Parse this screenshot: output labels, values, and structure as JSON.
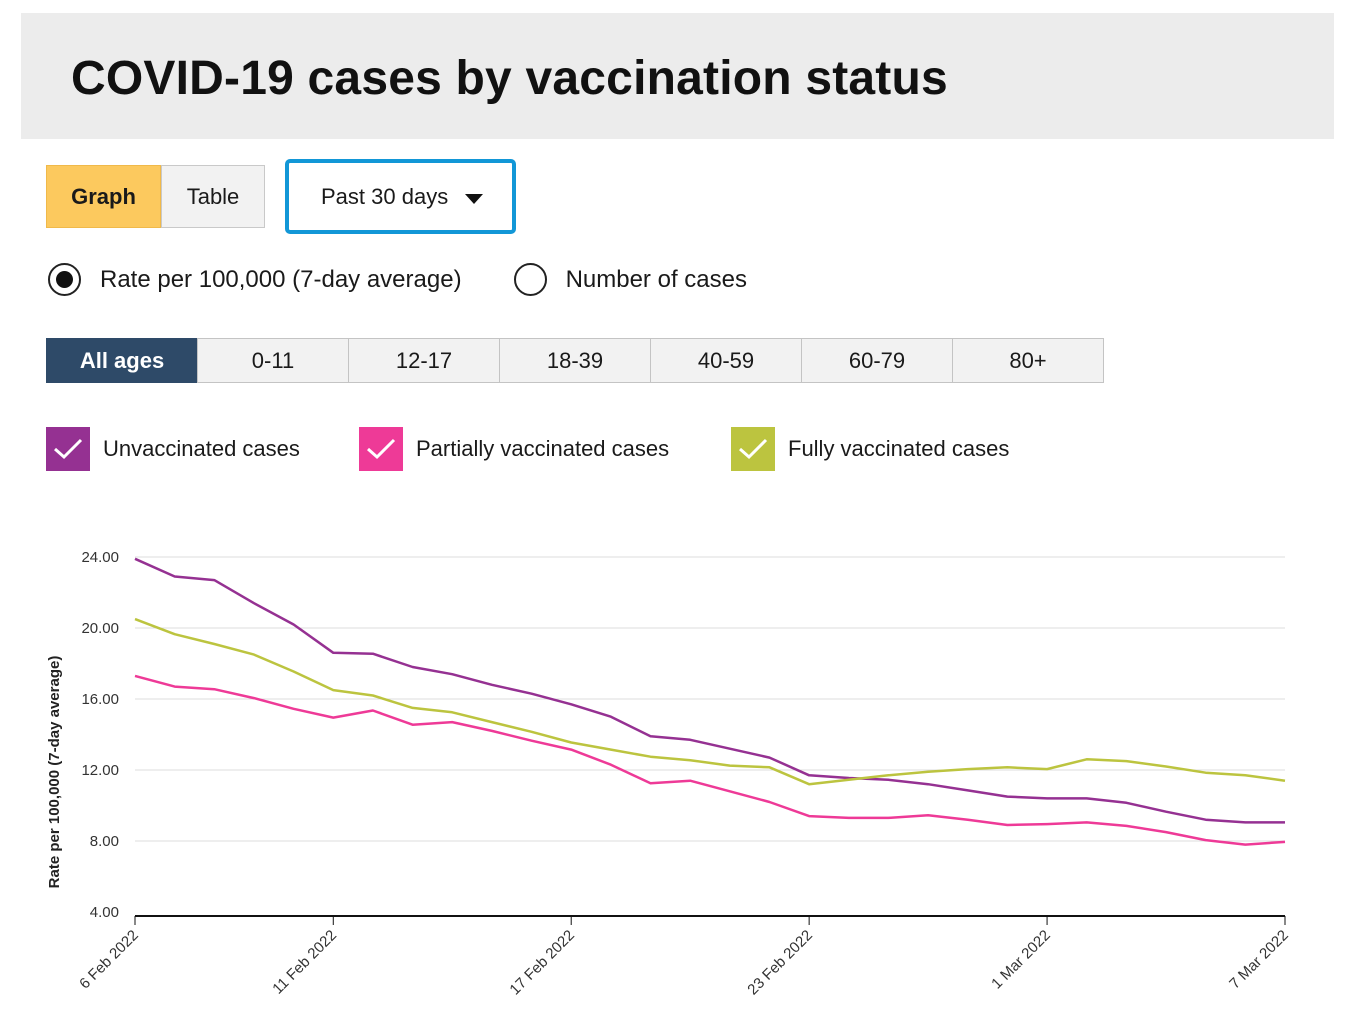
{
  "header": {
    "title": "COVID-19 cases by vaccination status"
  },
  "view_toggle": {
    "graph_label": "Graph",
    "table_label": "Table",
    "selected": "Graph"
  },
  "range_select": {
    "value": "Past 30 days"
  },
  "measure": {
    "options": [
      "Rate per 100,000 (7-day average)",
      "Number of cases"
    ],
    "selected": "Rate per 100,000 (7-day average)"
  },
  "age_groups": {
    "options": [
      "All ages",
      "0-11",
      "12-17",
      "18-39",
      "40-59",
      "60-79",
      "80+"
    ],
    "selected": "All ages"
  },
  "legend": [
    {
      "label": "Unvaccinated cases",
      "color": "#953192",
      "checked": true
    },
    {
      "label": "Partially vaccinated cases",
      "color": "#ee3a97",
      "checked": true
    },
    {
      "label": "Fully vaccinated cases",
      "color": "#bcc43f",
      "checked": true
    }
  ],
  "chart_data": {
    "type": "line",
    "ylabel": "Rate per 100,000 (7-day average)",
    "ylim": [
      4,
      24
    ],
    "yticks": [
      "4.00",
      "8.00",
      "12.00",
      "16.00",
      "20.00",
      "24.00"
    ],
    "xticks": [
      "6 Feb 2022",
      "11 Feb 2022",
      "17 Feb 2022",
      "23 Feb 2022",
      "1 Mar 2022",
      "7 Mar 2022"
    ],
    "grid": true,
    "x": [
      "2022-02-06",
      "2022-02-07",
      "2022-02-08",
      "2022-02-09",
      "2022-02-10",
      "2022-02-11",
      "2022-02-12",
      "2022-02-13",
      "2022-02-14",
      "2022-02-15",
      "2022-02-16",
      "2022-02-17",
      "2022-02-18",
      "2022-02-19",
      "2022-02-20",
      "2022-02-21",
      "2022-02-22",
      "2022-02-23",
      "2022-02-24",
      "2022-02-25",
      "2022-02-26",
      "2022-02-27",
      "2022-02-28",
      "2022-03-01",
      "2022-03-02",
      "2022-03-03",
      "2022-03-04",
      "2022-03-05",
      "2022-03-06",
      "2022-03-07"
    ],
    "series": [
      {
        "name": "Unvaccinated cases",
        "color": "#953192",
        "values": [
          23.9,
          22.9,
          22.7,
          21.4,
          20.2,
          18.6,
          18.55,
          17.8,
          17.4,
          16.8,
          16.3,
          15.7,
          15.0,
          13.9,
          13.7,
          13.2,
          12.7,
          11.7,
          11.55,
          11.45,
          11.2,
          10.85,
          10.5,
          10.4,
          10.4,
          10.15,
          9.65,
          9.2,
          9.05,
          9.05
        ]
      },
      {
        "name": "Partially vaccinated cases",
        "color": "#ee3a97",
        "values": [
          17.3,
          16.7,
          16.55,
          16.05,
          15.45,
          14.95,
          15.35,
          14.55,
          14.7,
          14.2,
          13.65,
          13.15,
          12.3,
          11.25,
          11.4,
          10.8,
          10.2,
          9.4,
          9.3,
          9.3,
          9.45,
          9.2,
          8.9,
          8.95,
          9.05,
          8.85,
          8.5,
          8.05,
          7.8,
          7.95
        ]
      },
      {
        "name": "Fully vaccinated cases",
        "color": "#bcc43f",
        "values": [
          20.5,
          19.65,
          19.1,
          18.5,
          17.55,
          16.5,
          16.2,
          15.5,
          15.25,
          14.7,
          14.15,
          13.55,
          13.15,
          12.75,
          12.55,
          12.25,
          12.15,
          11.2,
          11.45,
          11.7,
          11.9,
          12.05,
          12.15,
          12.05,
          12.6,
          12.5,
          12.2,
          11.85,
          11.7,
          11.4
        ]
      }
    ]
  }
}
